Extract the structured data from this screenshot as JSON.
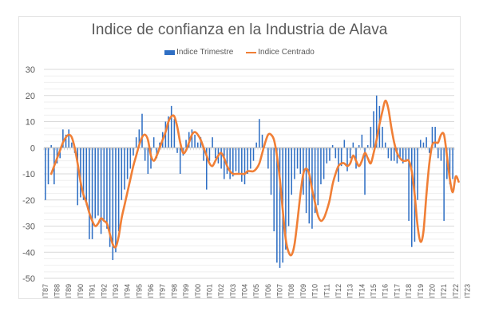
{
  "chart_data": {
    "type": "bar+line",
    "title": "Indice de confianza en la Industria de Alava",
    "xlabel": "",
    "ylabel": "",
    "ylim": [
      -50,
      30
    ],
    "yticks": [
      30,
      20,
      10,
      0,
      -10,
      -20,
      -30,
      -40,
      -50
    ],
    "grid": true,
    "legend": "top",
    "categories": [
      "IT87",
      "IT88",
      "IT89",
      "IT90",
      "IT91",
      "IT92",
      "IT93",
      "IT94",
      "IT95",
      "IT96",
      "IT97",
      "IT98",
      "IT99",
      "IT00",
      "IT01",
      "IT02",
      "IT03",
      "IT04",
      "IT05",
      "IT06",
      "IT07",
      "IT08",
      "IT09",
      "IT10",
      "IT11",
      "IT12",
      "IT13",
      "IT14",
      "IT15",
      "IT16",
      "IT17",
      "IT18",
      "IT19",
      "IT20",
      "IT21",
      "IT22",
      "IT23"
    ],
    "quarters_per_category": 4,
    "series": [
      {
        "name": "Indice Trimestre",
        "kind": "bar",
        "color": "#2f6fc4",
        "values": [
          -20,
          -14,
          1,
          -14,
          -6,
          -4,
          7,
          5,
          7,
          2,
          -2,
          -22,
          -19,
          -20,
          -22,
          -35,
          -35,
          -27,
          -26,
          -33,
          -28,
          -31,
          -38,
          -43,
          -40,
          -32,
          -20,
          -16,
          -12,
          -8,
          -3,
          4,
          7,
          13,
          -5,
          -10,
          -8,
          4,
          -4,
          2,
          6,
          10,
          12,
          16,
          11,
          -2,
          -10,
          -3,
          3,
          6,
          7,
          5,
          2,
          4,
          -5,
          -16,
          -5,
          4,
          -4,
          -6,
          -8,
          -12,
          -10,
          -12,
          -11,
          -9,
          -10,
          -13,
          -14,
          -10,
          -8,
          -5,
          2,
          11,
          5,
          0,
          -8,
          -18,
          -32,
          -44,
          -46,
          -44,
          -39,
          -30,
          -18,
          -12,
          -8,
          -10,
          -18,
          -25,
          -29,
          -31,
          -25,
          -22,
          -14,
          -12,
          -6,
          -5,
          1,
          -4,
          -13,
          -7,
          3,
          -9,
          -4,
          2,
          -8,
          1,
          5,
          -18,
          1,
          8,
          14,
          20,
          16,
          8,
          2,
          -4,
          -5,
          -5,
          -6,
          -4,
          -6,
          -5,
          -28,
          -38,
          -36,
          -20,
          3,
          2,
          4,
          -2,
          8,
          8,
          -4,
          -5,
          -28,
          -12,
          -14,
          -12
        ]
      },
      {
        "name": "Indice Centrado",
        "kind": "line",
        "color": "#f07f36",
        "start_index": 2,
        "values": [
          -10,
          -7,
          -4,
          -1,
          2,
          4,
          5,
          4,
          0,
          -6,
          -13,
          -18,
          -21,
          -25,
          -28,
          -30,
          -29,
          -27,
          -28,
          -29,
          -33,
          -37,
          -38,
          -34,
          -27,
          -22,
          -17,
          -12,
          -7,
          -3,
          1,
          4,
          5,
          3,
          -3,
          -5,
          -3,
          0,
          3,
          6,
          10,
          12,
          12,
          8,
          2,
          -2,
          -1,
          2,
          5,
          6,
          5,
          3,
          0,
          -3,
          -6,
          -7,
          -5,
          -3,
          -2,
          -4,
          -7,
          -9,
          -10,
          -10,
          -10,
          -10,
          -10,
          -9,
          -9,
          -9,
          -8,
          -6,
          -2,
          2,
          5,
          5,
          3,
          -3,
          -12,
          -24,
          -35,
          -40,
          -41,
          -37,
          -28,
          -18,
          -10,
          -8,
          -10,
          -16,
          -21,
          -26,
          -28,
          -27,
          -24,
          -20,
          -14,
          -10,
          -7,
          -6,
          -6,
          -7,
          -6,
          -3,
          -5,
          -7,
          -5,
          -2,
          -4,
          -6,
          -2,
          3,
          9,
          14,
          18,
          15,
          8,
          2,
          -2,
          -4,
          -5,
          -5,
          -5,
          -9,
          -18,
          -30,
          -36,
          -32,
          -18,
          -6,
          1,
          2,
          2,
          5,
          5,
          -3,
          -12,
          -17,
          -11,
          -13
        ]
      }
    ]
  }
}
